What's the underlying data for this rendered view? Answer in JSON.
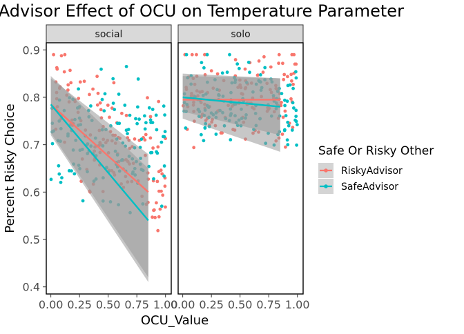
{
  "chart_data": {
    "type": "scatter",
    "title": "Risky Advisor Effect of OCU on Temperature Parameter",
    "xlabel": "OCU_Value",
    "ylabel": "Percent Risky Choice",
    "xlim": [
      -0.04,
      1.05
    ],
    "ylim": [
      0.385,
      0.915
    ],
    "x_ticks": [
      0.0,
      0.25,
      0.5,
      0.75,
      1.0
    ],
    "x_tick_labels": [
      "0.00",
      "0.25",
      "0.50",
      "0.75",
      "1.00"
    ],
    "y_ticks": [
      0.4,
      0.5,
      0.6,
      0.7,
      0.8,
      0.9
    ],
    "y_tick_labels": [
      "0.4",
      "0.5",
      "0.6",
      "0.7",
      "0.8",
      "0.9"
    ],
    "grid": false,
    "legend": {
      "title": "Safe Or Risky Other",
      "position": "right",
      "entries": [
        "RiskyAdvisor",
        "SafeAdvisor"
      ]
    },
    "colors": {
      "RiskyAdvisor": "#f8766d",
      "SafeAdvisor": "#00bfc4",
      "ribbon": "#999999",
      "strip": "#d9d9d9"
    },
    "points_per_series_per_panel": 140,
    "panels": [
      {
        "name": "social",
        "series": [
          {
            "name": "RiskyAdvisor",
            "x_range": [
              0.0,
              1.0
            ],
            "y_center_at_0": 0.79,
            "y_center_at_1": 0.64,
            "y_spread": 0.13,
            "fit": {
              "x": [
                0.0,
                0.85
              ],
              "y": [
                0.785,
                0.6
              ],
              "ci_low": [
                0.725,
                0.42
              ],
              "ci_high": [
                0.84,
                0.68
              ]
            }
          },
          {
            "name": "SafeAdvisor",
            "x_range": [
              0.0,
              1.0
            ],
            "y_center_at_0": 0.72,
            "y_center_at_1": 0.7,
            "y_spread": 0.14,
            "fit": {
              "x": [
                0.0,
                0.85
              ],
              "y": [
                0.785,
                0.54
              ],
              "ci_low": [
                0.72,
                0.41
              ],
              "ci_high": [
                0.845,
                0.65
              ]
            }
          }
        ]
      },
      {
        "name": "solo",
        "series": [
          {
            "name": "RiskyAdvisor",
            "x_range": [
              0.0,
              1.0
            ],
            "y_center_at_0": 0.8,
            "y_center_at_1": 0.8,
            "y_spread": 0.1,
            "fit": {
              "x": [
                0.0,
                0.85
              ],
              "y": [
                0.795,
                0.795
              ],
              "ci_low": [
                0.77,
                0.72
              ],
              "ci_high": [
                0.845,
                0.84
              ]
            }
          },
          {
            "name": "SafeAdvisor",
            "x_range": [
              0.0,
              1.0
            ],
            "y_center_at_0": 0.8,
            "y_center_at_1": 0.78,
            "y_spread": 0.1,
            "fit": {
              "x": [
                0.0,
                0.85
              ],
              "y": [
                0.8,
                0.78
              ],
              "ci_low": [
                0.755,
                0.685
              ],
              "ci_high": [
                0.85,
                0.84
              ]
            }
          }
        ]
      }
    ]
  }
}
